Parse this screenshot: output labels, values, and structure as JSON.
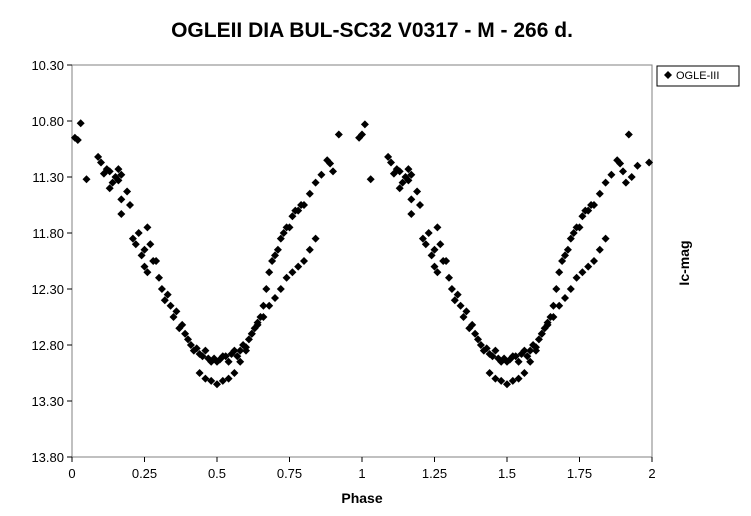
{
  "chart_data": {
    "type": "scatter",
    "title": "OGLEII DIA BUL-SC32 V0317 - M - 266 d.",
    "xlabel": "Phase",
    "ylabel": "Ic-mag",
    "xlim": [
      0,
      2
    ],
    "ylim": [
      10.3,
      13.8
    ],
    "y_inverted": true,
    "x_tick_labels": [
      "0",
      "0.25",
      "0.5",
      "0.75",
      "1",
      "1.25",
      "1.5",
      "1.75",
      "2"
    ],
    "x_tick_values": [
      0,
      0.25,
      0.5,
      0.75,
      1,
      1.25,
      1.5,
      1.75,
      2
    ],
    "y_tick_labels": [
      "10.30",
      "10.80",
      "11.30",
      "11.80",
      "12.30",
      "12.80",
      "13.30",
      "13.80"
    ],
    "y_tick_values": [
      10.3,
      10.8,
      11.3,
      11.8,
      12.3,
      12.8,
      13.3,
      13.8
    ],
    "grid": false,
    "legend_position": "top-right",
    "marker_color": "#000000",
    "marker": "diamond",
    "series": [
      {
        "name": "OGLE-III",
        "points": [
          [
            0.01,
            10.95
          ],
          [
            0.02,
            10.97
          ],
          [
            0.03,
            10.82
          ],
          [
            0.05,
            11.32
          ],
          [
            0.09,
            11.12
          ],
          [
            0.1,
            11.17
          ],
          [
            0.11,
            11.27
          ],
          [
            0.12,
            11.23
          ],
          [
            0.13,
            11.25
          ],
          [
            0.13,
            11.4
          ],
          [
            0.14,
            11.35
          ],
          [
            0.15,
            11.3
          ],
          [
            0.16,
            11.23
          ],
          [
            0.16,
            11.33
          ],
          [
            0.17,
            11.28
          ],
          [
            0.17,
            11.5
          ],
          [
            0.17,
            11.63
          ],
          [
            0.19,
            11.43
          ],
          [
            0.2,
            11.55
          ],
          [
            0.21,
            11.85
          ],
          [
            0.22,
            11.9
          ],
          [
            0.23,
            11.8
          ],
          [
            0.24,
            12.0
          ],
          [
            0.25,
            11.95
          ],
          [
            0.25,
            12.1
          ],
          [
            0.26,
            12.15
          ],
          [
            0.26,
            11.75
          ],
          [
            0.27,
            11.9
          ],
          [
            0.28,
            12.05
          ],
          [
            0.29,
            12.05
          ],
          [
            0.3,
            12.2
          ],
          [
            0.31,
            12.3
          ],
          [
            0.32,
            12.4
          ],
          [
            0.33,
            12.35
          ],
          [
            0.34,
            12.45
          ],
          [
            0.35,
            12.55
          ],
          [
            0.36,
            12.5
          ],
          [
            0.37,
            12.65
          ],
          [
            0.38,
            12.62
          ],
          [
            0.39,
            12.7
          ],
          [
            0.4,
            12.75
          ],
          [
            0.41,
            12.8
          ],
          [
            0.42,
            12.85
          ],
          [
            0.43,
            12.83
          ],
          [
            0.44,
            12.88
          ],
          [
            0.45,
            12.9
          ],
          [
            0.46,
            12.85
          ],
          [
            0.47,
            12.92
          ],
          [
            0.48,
            12.95
          ],
          [
            0.49,
            12.92
          ],
          [
            0.5,
            12.95
          ],
          [
            0.51,
            12.93
          ],
          [
            0.52,
            12.9
          ],
          [
            0.53,
            12.9
          ],
          [
            0.54,
            12.95
          ],
          [
            0.55,
            12.88
          ],
          [
            0.56,
            12.85
          ],
          [
            0.57,
            12.9
          ],
          [
            0.58,
            12.85
          ],
          [
            0.59,
            12.8
          ],
          [
            0.6,
            12.82
          ],
          [
            0.61,
            12.75
          ],
          [
            0.62,
            12.7
          ],
          [
            0.63,
            12.65
          ],
          [
            0.64,
            12.6
          ],
          [
            0.65,
            12.55
          ],
          [
            0.66,
            12.45
          ],
          [
            0.67,
            12.3
          ],
          [
            0.68,
            12.15
          ],
          [
            0.69,
            12.05
          ],
          [
            0.7,
            12.0
          ],
          [
            0.71,
            11.95
          ],
          [
            0.72,
            11.85
          ],
          [
            0.73,
            11.8
          ],
          [
            0.74,
            11.75
          ],
          [
            0.75,
            11.75
          ],
          [
            0.76,
            11.65
          ],
          [
            0.77,
            11.6
          ],
          [
            0.78,
            11.6
          ],
          [
            0.79,
            11.55
          ],
          [
            0.8,
            11.55
          ],
          [
            0.82,
            11.45
          ],
          [
            0.84,
            11.35
          ],
          [
            0.86,
            11.28
          ],
          [
            0.88,
            11.15
          ],
          [
            0.89,
            11.18
          ],
          [
            0.9,
            11.25
          ],
          [
            0.92,
            10.92
          ],
          [
            0.44,
            13.05
          ],
          [
            0.46,
            13.1
          ],
          [
            0.48,
            13.12
          ],
          [
            0.5,
            13.15
          ],
          [
            0.52,
            13.12
          ],
          [
            0.54,
            13.1
          ],
          [
            0.56,
            13.05
          ],
          [
            0.58,
            12.95
          ],
          [
            0.6,
            12.85
          ],
          [
            0.62,
            12.7
          ],
          [
            0.64,
            12.62
          ],
          [
            0.66,
            12.55
          ],
          [
            0.68,
            12.45
          ],
          [
            0.7,
            12.38
          ],
          [
            0.72,
            12.3
          ],
          [
            0.74,
            12.2
          ],
          [
            0.76,
            12.15
          ],
          [
            0.78,
            12.1
          ],
          [
            0.8,
            12.05
          ],
          [
            0.82,
            11.95
          ],
          [
            0.84,
            11.85
          ],
          [
            0.99,
            10.95
          ],
          [
            1.0,
            10.92
          ],
          [
            1.01,
            10.83
          ],
          [
            1.03,
            11.32
          ],
          [
            1.09,
            11.12
          ],
          [
            1.1,
            11.17
          ],
          [
            1.11,
            11.27
          ],
          [
            1.12,
            11.23
          ],
          [
            1.13,
            11.25
          ],
          [
            1.13,
            11.4
          ],
          [
            1.14,
            11.35
          ],
          [
            1.15,
            11.3
          ],
          [
            1.16,
            11.23
          ],
          [
            1.16,
            11.33
          ],
          [
            1.17,
            11.28
          ],
          [
            1.17,
            11.5
          ],
          [
            1.17,
            11.63
          ],
          [
            1.19,
            11.43
          ],
          [
            1.2,
            11.55
          ],
          [
            1.21,
            11.85
          ],
          [
            1.22,
            11.9
          ],
          [
            1.23,
            11.8
          ],
          [
            1.24,
            12.0
          ],
          [
            1.25,
            11.95
          ],
          [
            1.25,
            12.1
          ],
          [
            1.26,
            12.15
          ],
          [
            1.26,
            11.75
          ],
          [
            1.27,
            11.9
          ],
          [
            1.28,
            12.05
          ],
          [
            1.29,
            12.05
          ],
          [
            1.3,
            12.2
          ],
          [
            1.31,
            12.3
          ],
          [
            1.32,
            12.4
          ],
          [
            1.33,
            12.35
          ],
          [
            1.34,
            12.45
          ],
          [
            1.35,
            12.55
          ],
          [
            1.36,
            12.5
          ],
          [
            1.37,
            12.65
          ],
          [
            1.38,
            12.62
          ],
          [
            1.39,
            12.7
          ],
          [
            1.4,
            12.75
          ],
          [
            1.41,
            12.8
          ],
          [
            1.42,
            12.85
          ],
          [
            1.43,
            12.83
          ],
          [
            1.44,
            12.88
          ],
          [
            1.45,
            12.9
          ],
          [
            1.46,
            12.85
          ],
          [
            1.47,
            12.92
          ],
          [
            1.48,
            12.95
          ],
          [
            1.49,
            12.92
          ],
          [
            1.5,
            12.95
          ],
          [
            1.51,
            12.93
          ],
          [
            1.52,
            12.9
          ],
          [
            1.53,
            12.9
          ],
          [
            1.54,
            12.95
          ],
          [
            1.55,
            12.88
          ],
          [
            1.56,
            12.85
          ],
          [
            1.57,
            12.9
          ],
          [
            1.58,
            12.85
          ],
          [
            1.59,
            12.8
          ],
          [
            1.6,
            12.82
          ],
          [
            1.61,
            12.75
          ],
          [
            1.62,
            12.7
          ],
          [
            1.63,
            12.65
          ],
          [
            1.64,
            12.6
          ],
          [
            1.65,
            12.55
          ],
          [
            1.66,
            12.45
          ],
          [
            1.67,
            12.3
          ],
          [
            1.68,
            12.15
          ],
          [
            1.69,
            12.05
          ],
          [
            1.7,
            12.0
          ],
          [
            1.71,
            11.95
          ],
          [
            1.72,
            11.85
          ],
          [
            1.73,
            11.8
          ],
          [
            1.74,
            11.75
          ],
          [
            1.75,
            11.75
          ],
          [
            1.76,
            11.65
          ],
          [
            1.77,
            11.6
          ],
          [
            1.78,
            11.6
          ],
          [
            1.79,
            11.55
          ],
          [
            1.8,
            11.55
          ],
          [
            1.82,
            11.45
          ],
          [
            1.84,
            11.35
          ],
          [
            1.86,
            11.28
          ],
          [
            1.88,
            11.15
          ],
          [
            1.89,
            11.18
          ],
          [
            1.9,
            11.25
          ],
          [
            1.92,
            10.92
          ],
          [
            1.44,
            13.05
          ],
          [
            1.46,
            13.1
          ],
          [
            1.48,
            13.12
          ],
          [
            1.5,
            13.15
          ],
          [
            1.52,
            13.12
          ],
          [
            1.54,
            13.1
          ],
          [
            1.56,
            13.05
          ],
          [
            1.58,
            12.95
          ],
          [
            1.6,
            12.85
          ],
          [
            1.62,
            12.7
          ],
          [
            1.64,
            12.62
          ],
          [
            1.66,
            12.55
          ],
          [
            1.68,
            12.45
          ],
          [
            1.7,
            12.38
          ],
          [
            1.72,
            12.3
          ],
          [
            1.74,
            12.2
          ],
          [
            1.76,
            12.15
          ],
          [
            1.78,
            12.1
          ],
          [
            1.8,
            12.05
          ],
          [
            1.82,
            11.95
          ],
          [
            1.84,
            11.85
          ],
          [
            1.91,
            11.35
          ],
          [
            1.93,
            11.3
          ],
          [
            1.95,
            11.2
          ],
          [
            1.99,
            11.17
          ]
        ]
      }
    ]
  }
}
